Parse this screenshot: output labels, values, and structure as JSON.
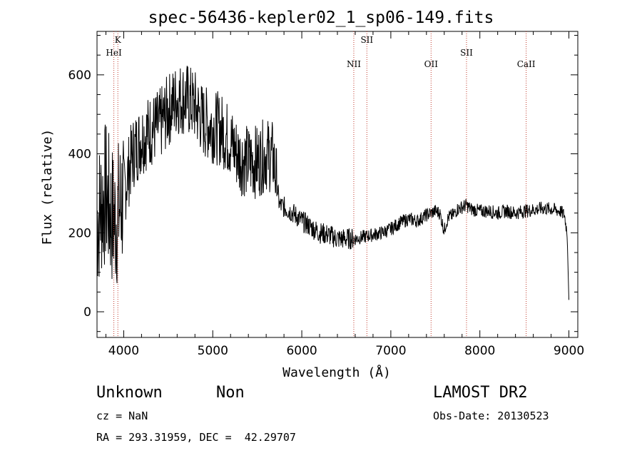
{
  "chart_data": {
    "type": "line",
    "title": "spec-56436-kepler02_1_sp06-149.fits",
    "xlabel": "Wavelength (Å)",
    "ylabel": "Flux (relative)",
    "xlim": [
      3700,
      9100
    ],
    "ylim": [
      -65,
      710
    ],
    "x_ticks": [
      4000,
      5000,
      6000,
      7000,
      8000,
      9000
    ],
    "y_ticks": [
      0,
      200,
      400,
      600
    ],
    "grid": false,
    "series": [
      {
        "x": [
          3700,
          3750,
          3800,
          3850,
          3900,
          3950,
          4000,
          4100,
          4200,
          4300,
          4400,
          4500,
          4600,
          4700,
          4800,
          4900,
          5000,
          5100,
          5200,
          5300,
          5400,
          5500,
          5600,
          5680,
          5720,
          5750,
          5800,
          5900,
          6000,
          6100,
          6200,
          6300,
          6400,
          6500,
          6600,
          6700,
          6800,
          6900,
          7000,
          7100,
          7200,
          7300,
          7400,
          7500,
          7550,
          7600,
          7620,
          7650,
          7700,
          7750,
          7800,
          7850,
          7900,
          8000,
          8100,
          8200,
          8300,
          8400,
          8500,
          8600,
          8700,
          8800,
          8900,
          8950,
          8980,
          9000
        ],
        "y": [
          230,
          270,
          300,
          250,
          230,
          260,
          300,
          400,
          440,
          460,
          470,
          510,
          540,
          540,
          520,
          480,
          470,
          460,
          430,
          390,
          380,
          380,
          400,
          390,
          320,
          270,
          265,
          250,
          230,
          215,
          200,
          195,
          185,
          185,
          185,
          190,
          195,
          200,
          210,
          225,
          235,
          230,
          245,
          255,
          250,
          205,
          225,
          240,
          245,
          260,
          265,
          270,
          260,
          255,
          255,
          250,
          255,
          250,
          255,
          258,
          262,
          260,
          255,
          245,
          200,
          30
        ]
      }
    ],
    "annotations": {
      "lines": [
        {
          "label": "K",
          "x": 3934
        },
        {
          "label": "HeI",
          "x": 3889
        },
        {
          "label": "NII",
          "x": 6584
        },
        {
          "label": "SII",
          "x": 6731
        },
        {
          "label": "OII",
          "x": 7452
        },
        {
          "label": "SII",
          "x": 7850
        },
        {
          "label": "CaII",
          "x": 8520
        }
      ]
    }
  },
  "footer": {
    "class": "Unknown",
    "subclass": "Non",
    "survey": "LAMOST DR2",
    "cz": "cz = NaN",
    "obs_date": "Obs-Date: 20130523",
    "coords": "RA = 293.31959, DEC =  42.29707"
  }
}
